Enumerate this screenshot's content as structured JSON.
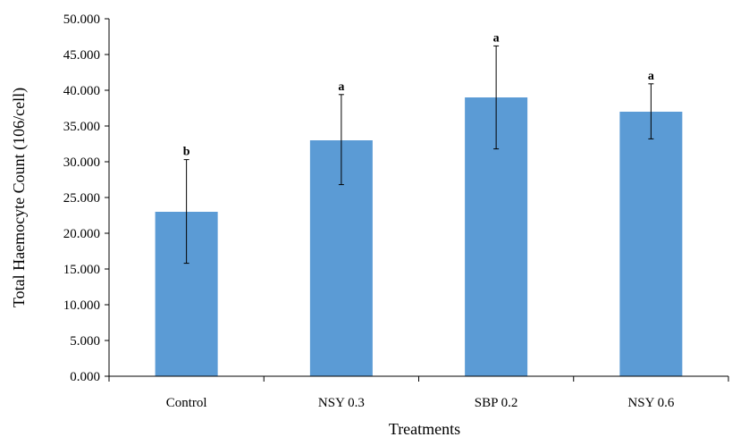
{
  "chart_data": {
    "type": "bar",
    "categories": [
      "Control",
      "NSY 0.3",
      "SBP 0.2",
      "NSY 0.6"
    ],
    "values": [
      23.0,
      33.0,
      39.0,
      37.0
    ],
    "error_low": [
      15.8,
      26.8,
      31.8,
      33.2
    ],
    "error_high": [
      30.3,
      39.4,
      46.2,
      40.9
    ],
    "significance_labels": [
      "b",
      "a",
      "a",
      "a"
    ],
    "xlabel": "Treatments",
    "ylabel": "Total Haemocyte Count (106/cell)",
    "ylim": [
      0,
      50
    ],
    "yticks": [
      "0.000",
      "5.000",
      "10.000",
      "15.000",
      "20.000",
      "25.000",
      "30.000",
      "35.000",
      "40.000",
      "45.000",
      "50.000"
    ],
    "bar_color": "#5b9bd5",
    "grid": false,
    "legend": "none"
  }
}
